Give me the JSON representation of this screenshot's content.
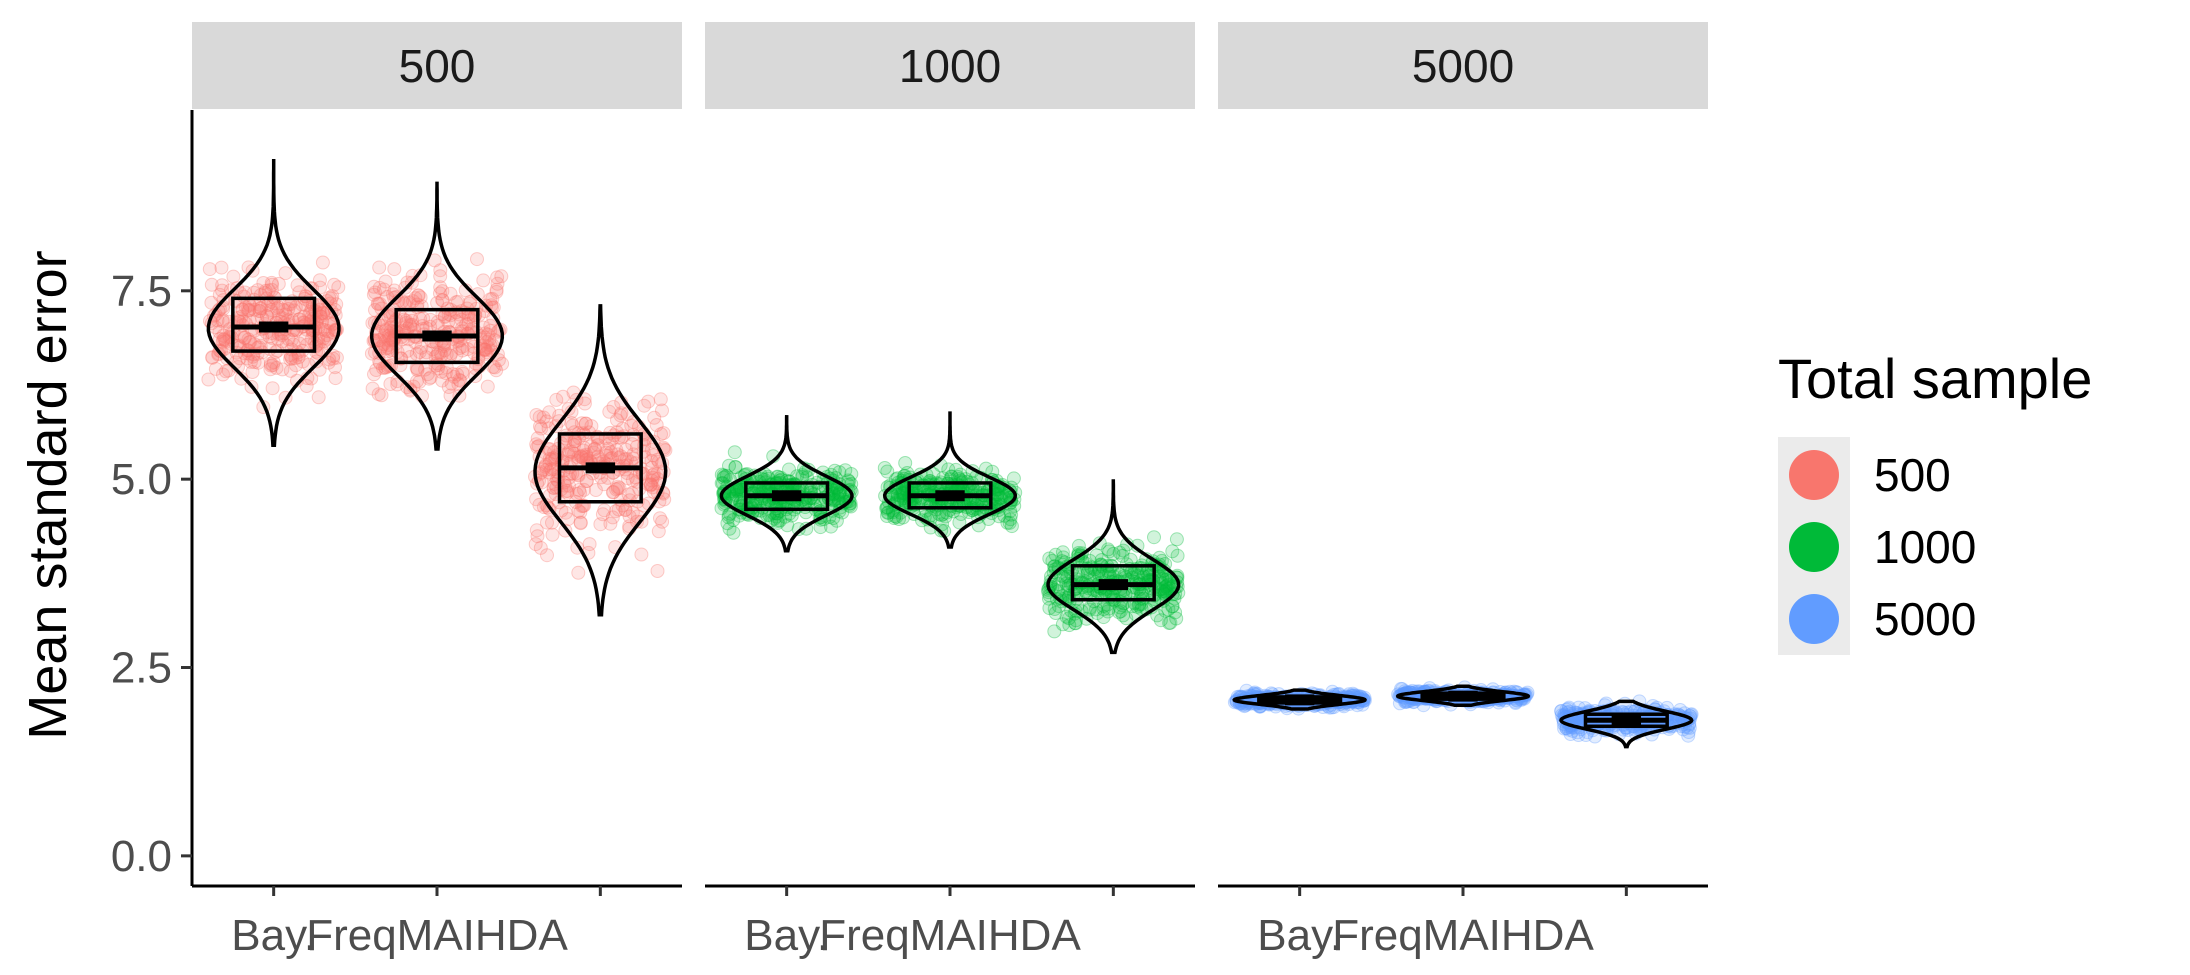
{
  "chart_data": {
    "type": "violin",
    "ylabel": "Mean standard error",
    "xlabel": "",
    "ylim": [
      -0.4,
      9.9
    ],
    "yticks": [
      {
        "value": 0.0,
        "label": "0.0"
      },
      {
        "value": 2.5,
        "label": "2.5"
      },
      {
        "value": 5.0,
        "label": "5.0"
      },
      {
        "value": 7.5,
        "label": "7.5"
      }
    ],
    "grid": false,
    "legend": {
      "title": "Total sample",
      "placement": "right",
      "entries": [
        {
          "label": "500",
          "color": "#F8766D"
        },
        {
          "label": "1000",
          "color": "#00BA38"
        },
        {
          "label": "5000",
          "color": "#619CFF"
        }
      ]
    },
    "panels": [
      {
        "strip": "500",
        "color": "#F8766D",
        "categories": [
          "Bay.",
          "FreqMAIHDA",
          ""
        ],
        "groups": [
          {
            "min": 5.45,
            "q1": 6.7,
            "median": 7.02,
            "q3": 7.4,
            "max": 9.25,
            "mode": 7.0
          },
          {
            "min": 5.4,
            "q1": 6.55,
            "median": 6.9,
            "q3": 7.25,
            "max": 8.95,
            "mode": 6.9
          },
          {
            "min": 3.2,
            "q1": 4.7,
            "median": 5.15,
            "q3": 5.6,
            "max": 7.3,
            "mode": 5.1
          }
        ]
      },
      {
        "strip": "1000",
        "color": "#00BA38",
        "categories": [
          "Bay.",
          "FreqMAIHDA",
          ""
        ],
        "groups": [
          {
            "min": 4.05,
            "q1": 4.6,
            "median": 4.78,
            "q3": 4.95,
            "max": 5.85,
            "mode": 4.78
          },
          {
            "min": 4.1,
            "q1": 4.62,
            "median": 4.78,
            "q3": 4.95,
            "max": 5.9,
            "mode": 4.78
          },
          {
            "min": 2.7,
            "q1": 3.4,
            "median": 3.6,
            "q3": 3.85,
            "max": 5.0,
            "mode": 3.6
          }
        ]
      },
      {
        "strip": "5000",
        "color": "#619CFF",
        "categories": [
          "Bay.",
          "FreqMAIHDA",
          ""
        ],
        "groups": [
          {
            "min": 1.95,
            "q1": 2.03,
            "median": 2.07,
            "q3": 2.11,
            "max": 2.2,
            "mode": 2.07
          },
          {
            "min": 2.0,
            "q1": 2.08,
            "median": 2.12,
            "q3": 2.16,
            "max": 2.25,
            "mode": 2.12
          },
          {
            "min": 1.45,
            "q1": 1.72,
            "median": 1.8,
            "q3": 1.88,
            "max": 2.05,
            "mode": 1.8
          }
        ]
      }
    ]
  }
}
